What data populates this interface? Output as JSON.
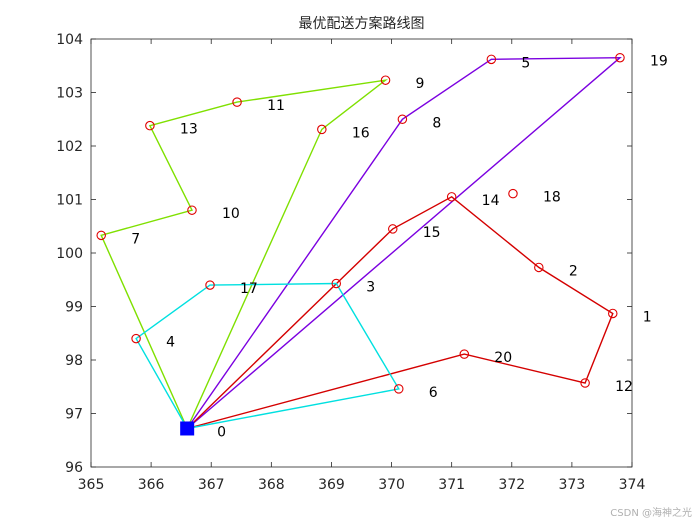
{
  "chart_data": {
    "type": "line",
    "title": "最优配送方案路线图",
    "xlabel": "",
    "ylabel": "",
    "xlim": [
      365,
      374
    ],
    "ylim": [
      96,
      104
    ],
    "xticks": [
      365,
      366,
      367,
      368,
      369,
      370,
      371,
      372,
      373,
      374
    ],
    "yticks": [
      96,
      97,
      98,
      99,
      100,
      101,
      102,
      103,
      104
    ],
    "grid": false,
    "legend": "none",
    "depot": {
      "label": "0",
      "x": 366.6,
      "y": 96.72,
      "color": "#0000ff"
    },
    "nodes": [
      {
        "label": "1",
        "x": 373.68,
        "y": 98.87
      },
      {
        "label": "2",
        "x": 372.45,
        "y": 99.73
      },
      {
        "label": "3",
        "x": 369.08,
        "y": 99.43
      },
      {
        "label": "4",
        "x": 365.75,
        "y": 98.4
      },
      {
        "label": "5",
        "x": 371.66,
        "y": 103.62
      },
      {
        "label": "6",
        "x": 370.12,
        "y": 97.46
      },
      {
        "label": "7",
        "x": 365.17,
        "y": 100.33
      },
      {
        "label": "8",
        "x": 370.18,
        "y": 102.5
      },
      {
        "label": "9",
        "x": 369.9,
        "y": 103.23
      },
      {
        "label": "10",
        "x": 366.68,
        "y": 100.8
      },
      {
        "label": "11",
        "x": 367.43,
        "y": 102.82
      },
      {
        "label": "12",
        "x": 373.22,
        "y": 97.57
      },
      {
        "label": "13",
        "x": 365.98,
        "y": 102.38
      },
      {
        "label": "14",
        "x": 371.0,
        "y": 101.05
      },
      {
        "label": "15",
        "x": 370.02,
        "y": 100.45
      },
      {
        "label": "16",
        "x": 368.84,
        "y": 102.31
      },
      {
        "label": "17",
        "x": 366.98,
        "y": 99.4
      },
      {
        "label": "18",
        "x": 372.02,
        "y": 101.11
      },
      {
        "label": "19",
        "x": 373.8,
        "y": 103.65
      },
      {
        "label": "20",
        "x": 371.21,
        "y": 98.11
      }
    ],
    "series": [
      {
        "color": "#7fe000",
        "route": [
          "0",
          "16",
          "9",
          "11",
          "13",
          "10",
          "7",
          "0"
        ]
      },
      {
        "color": "#7b00e0",
        "route": [
          "0",
          "8",
          "5",
          "19",
          "0"
        ]
      },
      {
        "color": "#d40000",
        "route": [
          "0",
          "15",
          "14",
          "2",
          "1",
          "12",
          "20",
          "0"
        ]
      },
      {
        "color": "#00e0e0",
        "route": [
          "0",
          "4",
          "17",
          "3",
          "6",
          "0"
        ]
      }
    ],
    "marker_color": "#e00000"
  },
  "watermark": "CSDN @海神之光"
}
